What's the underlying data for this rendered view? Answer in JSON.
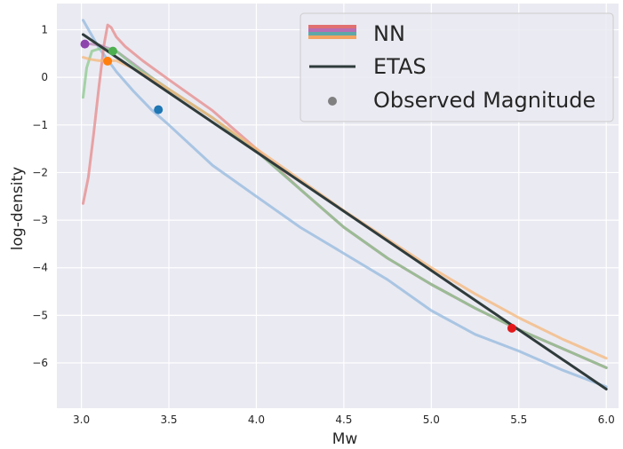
{
  "chart_data": {
    "type": "line",
    "xlabel": "Mw",
    "ylabel": "log-density",
    "xlim": [
      2.86,
      6.07
    ],
    "ylim": [
      -6.95,
      1.55
    ],
    "x_ticks": [
      3.0,
      3.5,
      4.0,
      4.5,
      5.0,
      5.5,
      6.0
    ],
    "x_tick_labels": [
      "3.0",
      "3.5",
      "4.0",
      "4.5",
      "5.0",
      "5.5",
      "6.0"
    ],
    "y_ticks": [
      1,
      0,
      -1,
      -2,
      -3,
      -4,
      -5,
      -6
    ],
    "y_tick_labels": [
      "1",
      "0",
      "−1",
      "−2",
      "−3",
      "−4",
      "−5",
      "−6"
    ],
    "grid": true,
    "background": "#eaeaf2",
    "legend_placement": "top-right",
    "legend": {
      "nn_label": "NN",
      "etas_label": "ETAS",
      "observed_label": "Observed Magnitude",
      "nn_colors": [
        "#e07070",
        "#b86fb3",
        "#5fa8a8",
        "#f4a460"
      ],
      "etas_color": "#2f3b3b",
      "observed_color": "#808080"
    },
    "series": [
      {
        "group": "NN",
        "color": "#93b8dd",
        "opacity": 0.75,
        "points": [
          [
            3.01,
            1.2
          ],
          [
            3.1,
            0.62
          ],
          [
            3.2,
            0.12
          ],
          [
            3.3,
            -0.3
          ],
          [
            3.4,
            -0.68
          ],
          [
            3.5,
            -1.0
          ],
          [
            3.75,
            -1.85
          ],
          [
            4.0,
            -2.5
          ],
          [
            4.25,
            -3.15
          ],
          [
            4.5,
            -3.7
          ],
          [
            4.75,
            -4.25
          ],
          [
            5.0,
            -4.9
          ],
          [
            5.25,
            -5.4
          ],
          [
            5.5,
            -5.75
          ],
          [
            5.75,
            -6.15
          ],
          [
            6.0,
            -6.5
          ]
        ]
      },
      {
        "group": "NN",
        "color": "#e68a8a",
        "opacity": 0.75,
        "points": [
          [
            3.01,
            -2.65
          ],
          [
            3.04,
            -2.1
          ],
          [
            3.07,
            -1.2
          ],
          [
            3.1,
            -0.2
          ],
          [
            3.13,
            0.7
          ],
          [
            3.15,
            1.1
          ],
          [
            3.17,
            1.05
          ],
          [
            3.2,
            0.85
          ],
          [
            3.25,
            0.65
          ],
          [
            3.35,
            0.35
          ],
          [
            3.5,
            -0.05
          ],
          [
            3.75,
            -0.7
          ],
          [
            4.0,
            -1.5
          ],
          [
            4.25,
            -2.35
          ],
          [
            4.5,
            -3.15
          ],
          [
            4.75,
            -3.8
          ],
          [
            5.0,
            -4.35
          ],
          [
            5.25,
            -4.85
          ],
          [
            5.5,
            -5.3
          ],
          [
            5.75,
            -5.7
          ],
          [
            6.0,
            -6.1
          ]
        ]
      },
      {
        "group": "NN",
        "color": "#b98ab6",
        "opacity": 0.75,
        "points": [
          [
            3.01,
            0.72
          ],
          [
            3.1,
            0.68
          ],
          [
            3.2,
            0.55
          ],
          [
            3.3,
            0.28
          ],
          [
            3.4,
            0.0
          ],
          [
            3.5,
            -0.25
          ],
          [
            3.75,
            -0.85
          ],
          [
            4.0,
            -1.55
          ],
          [
            4.25,
            -2.35
          ],
          [
            4.5,
            -3.15
          ],
          [
            4.75,
            -3.8
          ],
          [
            5.0,
            -4.35
          ],
          [
            5.25,
            -4.85
          ],
          [
            5.5,
            -5.3
          ],
          [
            5.75,
            -5.7
          ],
          [
            6.0,
            -6.1
          ]
        ]
      },
      {
        "group": "NN",
        "color": "#8cc98c",
        "opacity": 0.75,
        "points": [
          [
            3.01,
            -0.42
          ],
          [
            3.03,
            0.2
          ],
          [
            3.06,
            0.55
          ],
          [
            3.12,
            0.62
          ],
          [
            3.2,
            0.55
          ],
          [
            3.3,
            0.25
          ],
          [
            3.4,
            0.0
          ],
          [
            3.5,
            -0.25
          ],
          [
            3.75,
            -0.85
          ],
          [
            4.0,
            -1.55
          ],
          [
            4.25,
            -2.35
          ],
          [
            4.5,
            -3.15
          ],
          [
            4.75,
            -3.8
          ],
          [
            5.0,
            -4.35
          ],
          [
            5.25,
            -4.85
          ],
          [
            5.5,
            -5.3
          ],
          [
            5.75,
            -5.7
          ],
          [
            6.0,
            -6.1
          ]
        ]
      },
      {
        "group": "NN",
        "color": "#f5b77a",
        "opacity": 0.75,
        "points": [
          [
            3.01,
            0.42
          ],
          [
            3.05,
            0.38
          ],
          [
            3.1,
            0.35
          ],
          [
            3.2,
            0.35
          ],
          [
            3.3,
            0.18
          ],
          [
            3.4,
            -0.02
          ],
          [
            3.5,
            -0.25
          ],
          [
            3.75,
            -0.85
          ],
          [
            4.0,
            -1.5
          ],
          [
            4.25,
            -2.15
          ],
          [
            4.5,
            -2.8
          ],
          [
            4.75,
            -3.4
          ],
          [
            5.0,
            -4.0
          ],
          [
            5.25,
            -4.55
          ],
          [
            5.5,
            -5.05
          ],
          [
            5.75,
            -5.5
          ],
          [
            6.0,
            -5.9
          ]
        ]
      },
      {
        "group": "ETAS",
        "color": "#2f3b3b",
        "opacity": 1.0,
        "points": [
          [
            3.01,
            0.9
          ],
          [
            6.0,
            -6.55
          ]
        ]
      }
    ],
    "observed_points": [
      {
        "x": 3.02,
        "y": 0.7,
        "color": "#8e44ad"
      },
      {
        "x": 3.15,
        "y": 0.34,
        "color": "#ff7f0e"
      },
      {
        "x": 3.18,
        "y": 0.55,
        "color": "#4caf50"
      },
      {
        "x": 3.44,
        "y": -0.68,
        "color": "#1f77b4"
      },
      {
        "x": 5.46,
        "y": -5.27,
        "color": "#e31a1c"
      }
    ]
  }
}
